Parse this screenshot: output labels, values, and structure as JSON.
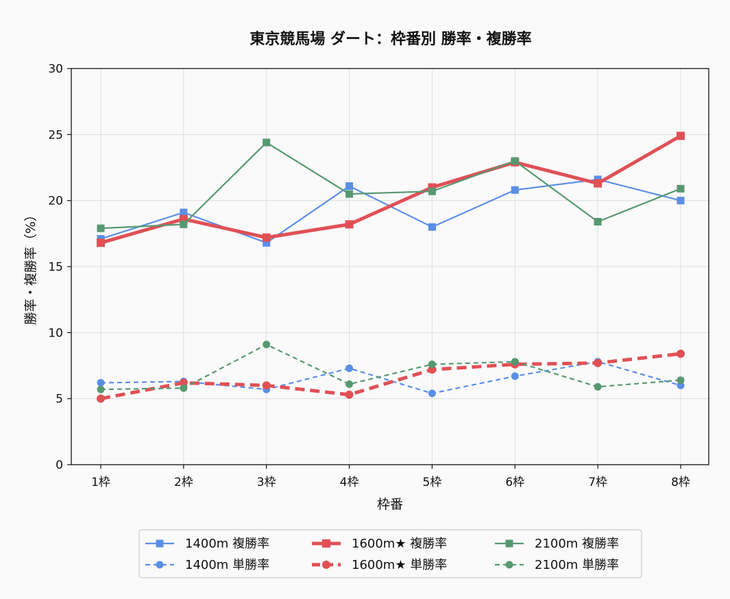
{
  "chart_data": {
    "type": "line",
    "title": "東京競馬場 ダート：枠番別 勝率・複勝率",
    "xlabel": "枠番",
    "ylabel": "勝率・複勝率（%）",
    "categories": [
      "1枠",
      "2枠",
      "3枠",
      "4枠",
      "5枠",
      "6枠",
      "7枠",
      "8枠"
    ],
    "ylim": [
      0,
      30
    ],
    "yticks": [
      0,
      5,
      10,
      15,
      20,
      25,
      30
    ],
    "grid": true,
    "legend_position": "bottom-center",
    "series": [
      {
        "name": "1400m 複勝率",
        "color": "#5b8ee6",
        "style": "solid",
        "marker": "square",
        "weight": "normal",
        "values": [
          17.1,
          19.1,
          16.8,
          21.1,
          18.0,
          20.8,
          21.6,
          20.0
        ]
      },
      {
        "name": "1400m 単勝率",
        "color": "#5b8ee6",
        "style": "dashed",
        "marker": "circle",
        "weight": "normal",
        "values": [
          6.2,
          6.3,
          5.7,
          7.3,
          5.4,
          6.7,
          7.8,
          6.0
        ]
      },
      {
        "name": "1600m★ 複勝率",
        "color": "#e05055",
        "style": "solid",
        "marker": "square",
        "weight": "bold",
        "values": [
          16.8,
          18.6,
          17.2,
          18.2,
          21.0,
          22.9,
          21.3,
          24.9
        ]
      },
      {
        "name": "1600m★ 単勝率",
        "color": "#e05055",
        "style": "dashed",
        "marker": "circle",
        "weight": "bold",
        "values": [
          5.0,
          6.2,
          6.0,
          5.3,
          7.2,
          7.6,
          7.7,
          8.4
        ]
      },
      {
        "name": "2100m 複勝率",
        "color": "#569870",
        "style": "solid",
        "marker": "square",
        "weight": "normal",
        "values": [
          17.9,
          18.2,
          24.4,
          20.5,
          20.7,
          23.0,
          18.4,
          20.9
        ]
      },
      {
        "name": "2100m 単勝率",
        "color": "#569870",
        "style": "dashed",
        "marker": "circle",
        "weight": "normal",
        "values": [
          5.7,
          5.8,
          9.1,
          6.1,
          7.6,
          7.8,
          5.9,
          6.4
        ]
      }
    ]
  }
}
